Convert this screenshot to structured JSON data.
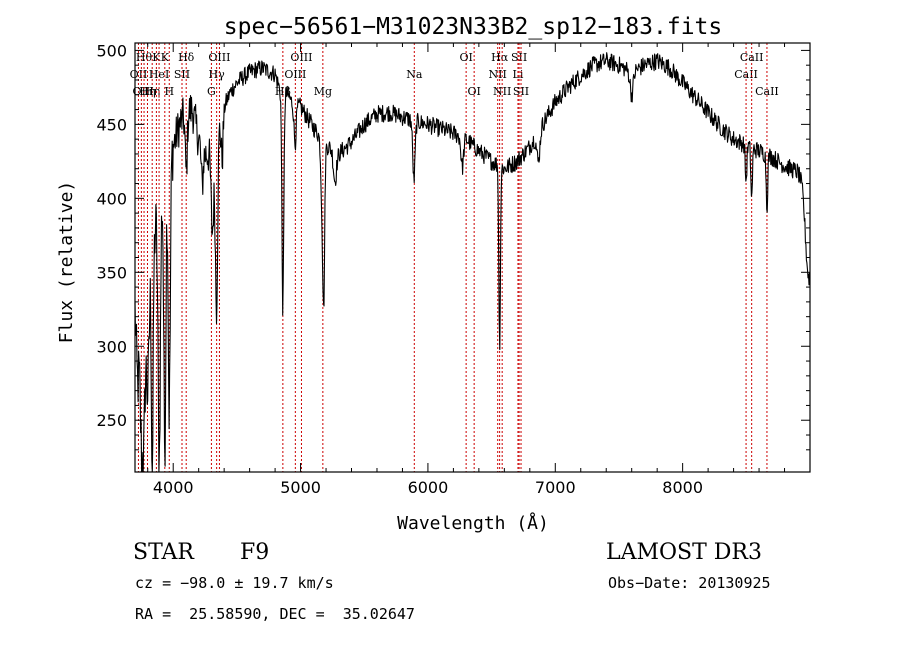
{
  "chart_data": {
    "type": "line",
    "title": "spec−56561−M31023N33B2_sp12−183.fits",
    "xlabel": "Wavelength (Å)",
    "ylabel": "Flux (relative)",
    "xlim": [
      3700,
      9000
    ],
    "ylim": [
      215,
      505
    ],
    "xticks": [
      4000,
      5000,
      6000,
      7000,
      8000
    ],
    "yticks": [
      250,
      300,
      350,
      400,
      450,
      500
    ],
    "line_color": "#000000",
    "marker_color": "#cc0000",
    "continuum": [
      [
        3700,
        330
      ],
      [
        3750,
        345
      ],
      [
        3800,
        360
      ],
      [
        3850,
        375
      ],
      [
        3900,
        400
      ],
      [
        3950,
        420
      ],
      [
        4000,
        435
      ],
      [
        4050,
        450
      ],
      [
        4100,
        458
      ],
      [
        4150,
        460
      ],
      [
        4200,
        440
      ],
      [
        4250,
        430
      ],
      [
        4300,
        430
      ],
      [
        4350,
        445
      ],
      [
        4400,
        462
      ],
      [
        4450,
        472
      ],
      [
        4500,
        478
      ],
      [
        4550,
        482
      ],
      [
        4600,
        485
      ],
      [
        4650,
        487
      ],
      [
        4700,
        488
      ],
      [
        4750,
        486
      ],
      [
        4800,
        484
      ],
      [
        4850,
        470
      ],
      [
        4900,
        470
      ],
      [
        4950,
        462
      ],
      [
        5000,
        462
      ],
      [
        5100,
        448
      ],
      [
        5200,
        436
      ],
      [
        5300,
        430
      ],
      [
        5400,
        438
      ],
      [
        5500,
        450
      ],
      [
        5600,
        457
      ],
      [
        5700,
        458
      ],
      [
        5800,
        455
      ],
      [
        5900,
        452
      ],
      [
        6000,
        450
      ],
      [
        6100,
        447
      ],
      [
        6200,
        444
      ],
      [
        6300,
        440
      ],
      [
        6400,
        432
      ],
      [
        6500,
        425
      ],
      [
        6600,
        420
      ],
      [
        6700,
        425
      ],
      [
        6800,
        435
      ],
      [
        6900,
        450
      ],
      [
        7000,
        465
      ],
      [
        7100,
        475
      ],
      [
        7200,
        483
      ],
      [
        7300,
        490
      ],
      [
        7400,
        493
      ],
      [
        7500,
        490
      ],
      [
        7600,
        485
      ],
      [
        7700,
        490
      ],
      [
        7800,
        493
      ],
      [
        7900,
        488
      ],
      [
        8000,
        478
      ],
      [
        8100,
        468
      ],
      [
        8200,
        458
      ],
      [
        8300,
        448
      ],
      [
        8400,
        440
      ],
      [
        8500,
        436
      ],
      [
        8600,
        432
      ],
      [
        8700,
        428
      ],
      [
        8800,
        422
      ],
      [
        8900,
        418
      ],
      [
        9000,
        405
      ]
    ],
    "absorption_features": [
      [
        3720,
        55,
        10
      ],
      [
        3750,
        100,
        12
      ],
      [
        3770,
        90,
        10
      ],
      [
        3800,
        90,
        12
      ],
      [
        3836,
        160,
        7
      ],
      [
        3890,
        170,
        9
      ],
      [
        3934,
        180,
        8
      ],
      [
        3969,
        170,
        8
      ],
      [
        4102,
        40,
        8
      ],
      [
        4227,
        25,
        8
      ],
      [
        4308,
        55,
        10
      ],
      [
        4340,
        115,
        9
      ],
      [
        4384,
        30,
        8
      ],
      [
        4861,
        145,
        7
      ],
      [
        4957,
        25,
        8
      ],
      [
        5172,
        55,
        10
      ],
      [
        5183,
        80,
        7
      ],
      [
        5270,
        20,
        12
      ],
      [
        5890,
        40,
        9
      ],
      [
        6270,
        20,
        10
      ],
      [
        6563,
        120,
        6
      ],
      [
        6867,
        20,
        12
      ],
      [
        7600,
        15,
        12
      ],
      [
        8498,
        25,
        6
      ],
      [
        8542,
        35,
        6
      ],
      [
        8662,
        35,
        6
      ],
      [
        8990,
        60,
        25
      ]
    ],
    "line_markers": [
      {
        "wavelength": 3727,
        "label": "OII",
        "row": 1
      },
      {
        "wavelength": 3750,
        "label": "OII",
        "row": 2
      },
      {
        "wavelength": 3771,
        "label": "Hθ",
        "row": 0
      },
      {
        "wavelength": 3798,
        "label": "Hη",
        "row": 2
      },
      {
        "wavelength": 3835,
        "label": "Hη",
        "row": 2
      },
      {
        "wavelength": 3868,
        "label": "K",
        "row": 0
      },
      {
        "wavelength": 3889,
        "label": "HeI",
        "row": 1
      },
      {
        "wavelength": 3934,
        "label": "K",
        "row": 0
      },
      {
        "wavelength": 3969,
        "label": "H",
        "row": 2
      },
      {
        "wavelength": 4069,
        "label": "SII",
        "row": 1
      },
      {
        "wavelength": 4102,
        "label": "Hδ",
        "row": 0
      },
      {
        "wavelength": 4300,
        "label": "G",
        "row": 2
      },
      {
        "wavelength": 4341,
        "label": "Hγ",
        "row": 1
      },
      {
        "wavelength": 4363,
        "label": "OIII",
        "row": 0
      },
      {
        "wavelength": 4861,
        "label": "Hβ",
        "row": 2
      },
      {
        "wavelength": 4959,
        "label": "OIII",
        "row": 1
      },
      {
        "wavelength": 5007,
        "label": "OIII",
        "row": 0
      },
      {
        "wavelength": 5175,
        "label": "Mg",
        "row": 2
      },
      {
        "wavelength": 5893,
        "label": "Na",
        "row": 1
      },
      {
        "wavelength": 6300,
        "label": "OI",
        "row": 0
      },
      {
        "wavelength": 6363,
        "label": "OI",
        "row": 2
      },
      {
        "wavelength": 6548,
        "label": "NII",
        "row": 1
      },
      {
        "wavelength": 6563,
        "label": "Hα",
        "row": 0
      },
      {
        "wavelength": 6583,
        "label": "NII",
        "row": 2
      },
      {
        "wavelength": 6707,
        "label": "Li",
        "row": 1
      },
      {
        "wavelength": 6716,
        "label": "SII",
        "row": 0
      },
      {
        "wavelength": 6731,
        "label": "SII",
        "row": 2
      },
      {
        "wavelength": 8498,
        "label": "CaII",
        "row": 1
      },
      {
        "wavelength": 8542,
        "label": "CaII",
        "row": 0
      },
      {
        "wavelength": 8662,
        "label": "CaII",
        "row": 2
      }
    ]
  },
  "info": {
    "class_label": "STAR",
    "subclass": "F9",
    "survey": "LAMOST DR3",
    "redshift": "cz = −98.0 ± 19.7 km/s",
    "obs_date": "Obs−Date: 20130925",
    "coords": "RA =  25.58590, DEC =  35.02647"
  }
}
